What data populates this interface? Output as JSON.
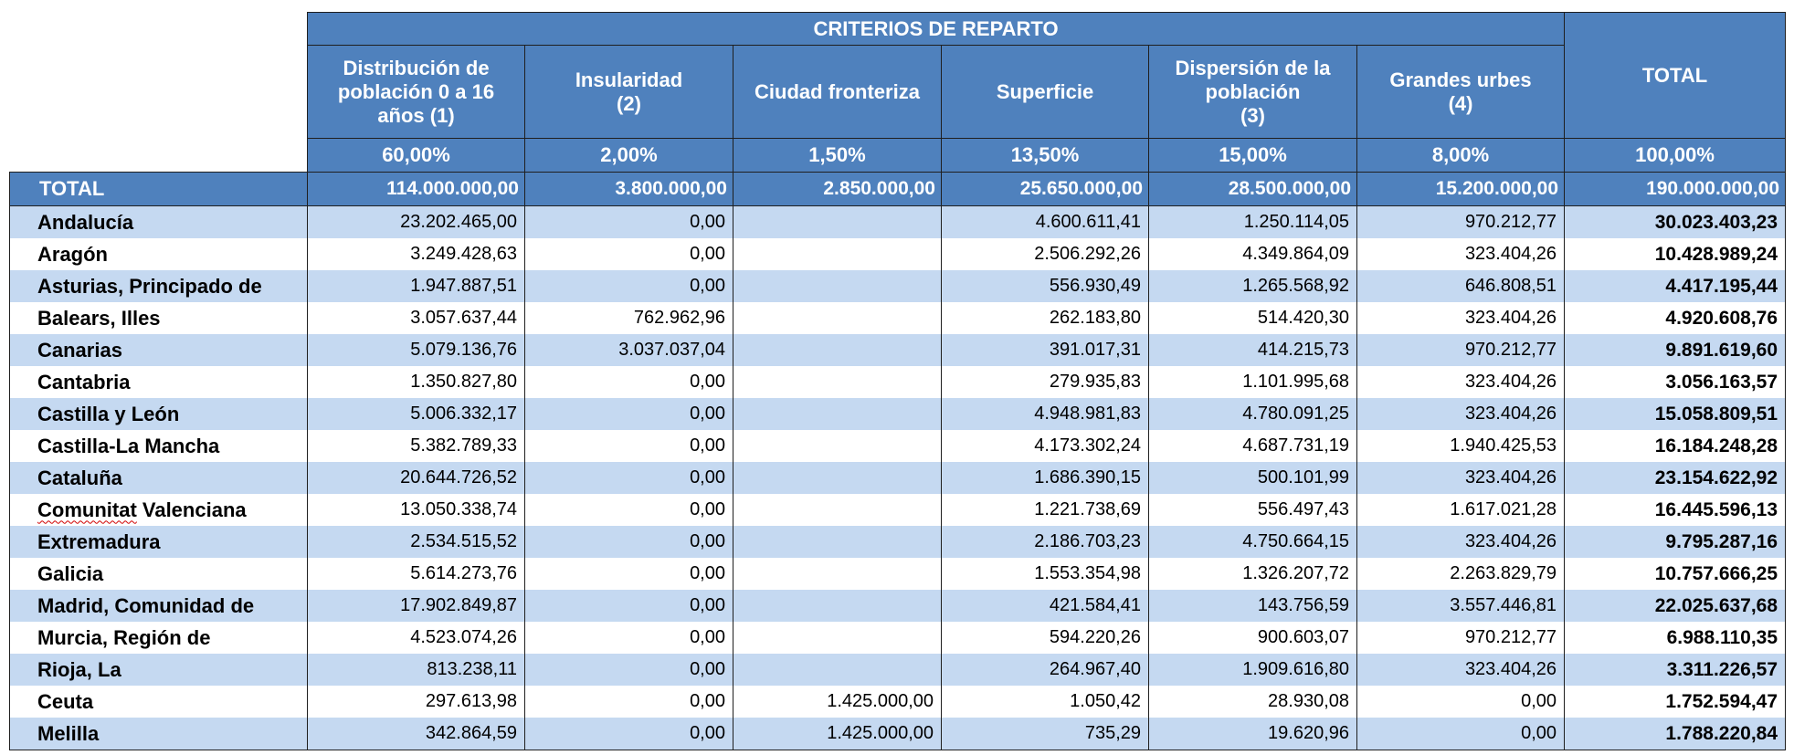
{
  "header": {
    "criterios": "CRITERIOS DE REPARTO",
    "columns": [
      {
        "line1": "Distribución de",
        "line2": "población 0 a 16",
        "line3": "años (1)"
      },
      {
        "line1": "Insularidad",
        "line2": "(2)",
        "line3": ""
      },
      {
        "line1": "Ciudad fronteriza",
        "line2": "",
        "line3": ""
      },
      {
        "line1": "Superficie",
        "line2": "",
        "line3": ""
      },
      {
        "line1": "Dispersión de la",
        "line2": "población",
        "line3": "(3)"
      },
      {
        "line1": "Grandes urbes",
        "line2": "(4)",
        "line3": ""
      }
    ],
    "total_label": "TOTAL",
    "percentages": [
      "60,00%",
      "2,00%",
      "1,50%",
      "13,50%",
      "15,00%",
      "8,00%",
      "100,00%"
    ]
  },
  "total_row": {
    "label": "TOTAL",
    "values": [
      "114.000.000,00",
      "3.800.000,00",
      "2.850.000,00",
      "25.650.000,00",
      "28.500.000,00",
      "15.200.000,00",
      "190.000.000,00"
    ]
  },
  "rows": [
    {
      "name": "Andalucía",
      "values": [
        "23.202.465,00",
        "0,00",
        "",
        "4.600.611,41",
        "1.250.114,05",
        "970.212,77",
        "30.023.403,23"
      ]
    },
    {
      "name": "Aragón",
      "values": [
        "3.249.428,63",
        "0,00",
        "",
        "2.506.292,26",
        "4.349.864,09",
        "323.404,26",
        "10.428.989,24"
      ]
    },
    {
      "name": "Asturias, Principado de",
      "values": [
        "1.947.887,51",
        "0,00",
        "",
        "556.930,49",
        "1.265.568,92",
        "646.808,51",
        "4.417.195,44"
      ]
    },
    {
      "name": "Balears, Illes",
      "values": [
        "3.057.637,44",
        "762.962,96",
        "",
        "262.183,80",
        "514.420,30",
        "323.404,26",
        "4.920.608,76"
      ]
    },
    {
      "name": "Canarias",
      "values": [
        "5.079.136,76",
        "3.037.037,04",
        "",
        "391.017,31",
        "414.215,73",
        "970.212,77",
        "9.891.619,60"
      ]
    },
    {
      "name": "Cantabria",
      "values": [
        "1.350.827,80",
        "0,00",
        "",
        "279.935,83",
        "1.101.995,68",
        "323.404,26",
        "3.056.163,57"
      ]
    },
    {
      "name": "Castilla y León",
      "values": [
        "5.006.332,17",
        "0,00",
        "",
        "4.948.981,83",
        "4.780.091,25",
        "323.404,26",
        "15.058.809,51"
      ]
    },
    {
      "name": "Castilla-La Mancha",
      "values": [
        "5.382.789,33",
        "0,00",
        "",
        "4.173.302,24",
        "4.687.731,19",
        "1.940.425,53",
        "16.184.248,28"
      ]
    },
    {
      "name": "Cataluña",
      "values": [
        "20.644.726,52",
        "0,00",
        "",
        "1.686.390,15",
        "500.101,99",
        "323.404,26",
        "23.154.622,92"
      ]
    },
    {
      "name_a": "Comunitat",
      "name_b": " Valenciana",
      "values": [
        "13.050.338,74",
        "0,00",
        "",
        "1.221.738,69",
        "556.497,43",
        "1.617.021,28",
        "16.445.596,13"
      ]
    },
    {
      "name": "Extremadura",
      "values": [
        "2.534.515,52",
        "0,00",
        "",
        "2.186.703,23",
        "4.750.664,15",
        "323.404,26",
        "9.795.287,16"
      ]
    },
    {
      "name": "Galicia",
      "values": [
        "5.614.273,76",
        "0,00",
        "",
        "1.553.354,98",
        "1.326.207,72",
        "2.263.829,79",
        "10.757.666,25"
      ]
    },
    {
      "name": "Madrid, Comunidad de",
      "values": [
        "17.902.849,87",
        "0,00",
        "",
        "421.584,41",
        "143.756,59",
        "3.557.446,81",
        "22.025.637,68"
      ]
    },
    {
      "name": "Murcia, Región de",
      "values": [
        "4.523.074,26",
        "0,00",
        "",
        "594.220,26",
        "900.603,07",
        "970.212,77",
        "6.988.110,35"
      ]
    },
    {
      "name": "Rioja, La",
      "values": [
        "813.238,11",
        "0,00",
        "",
        "264.967,40",
        "1.909.616,80",
        "323.404,26",
        "3.311.226,57"
      ]
    },
    {
      "name": "Ceuta",
      "values": [
        "297.613,98",
        "0,00",
        "1.425.000,00",
        "1.050,42",
        "28.930,08",
        "0,00",
        "1.752.594,47"
      ]
    },
    {
      "name": "Melilla",
      "values": [
        "342.864,59",
        "0,00",
        "1.425.000,00",
        "735,29",
        "19.620,96",
        "0,00",
        "1.788.220,84"
      ]
    }
  ]
}
